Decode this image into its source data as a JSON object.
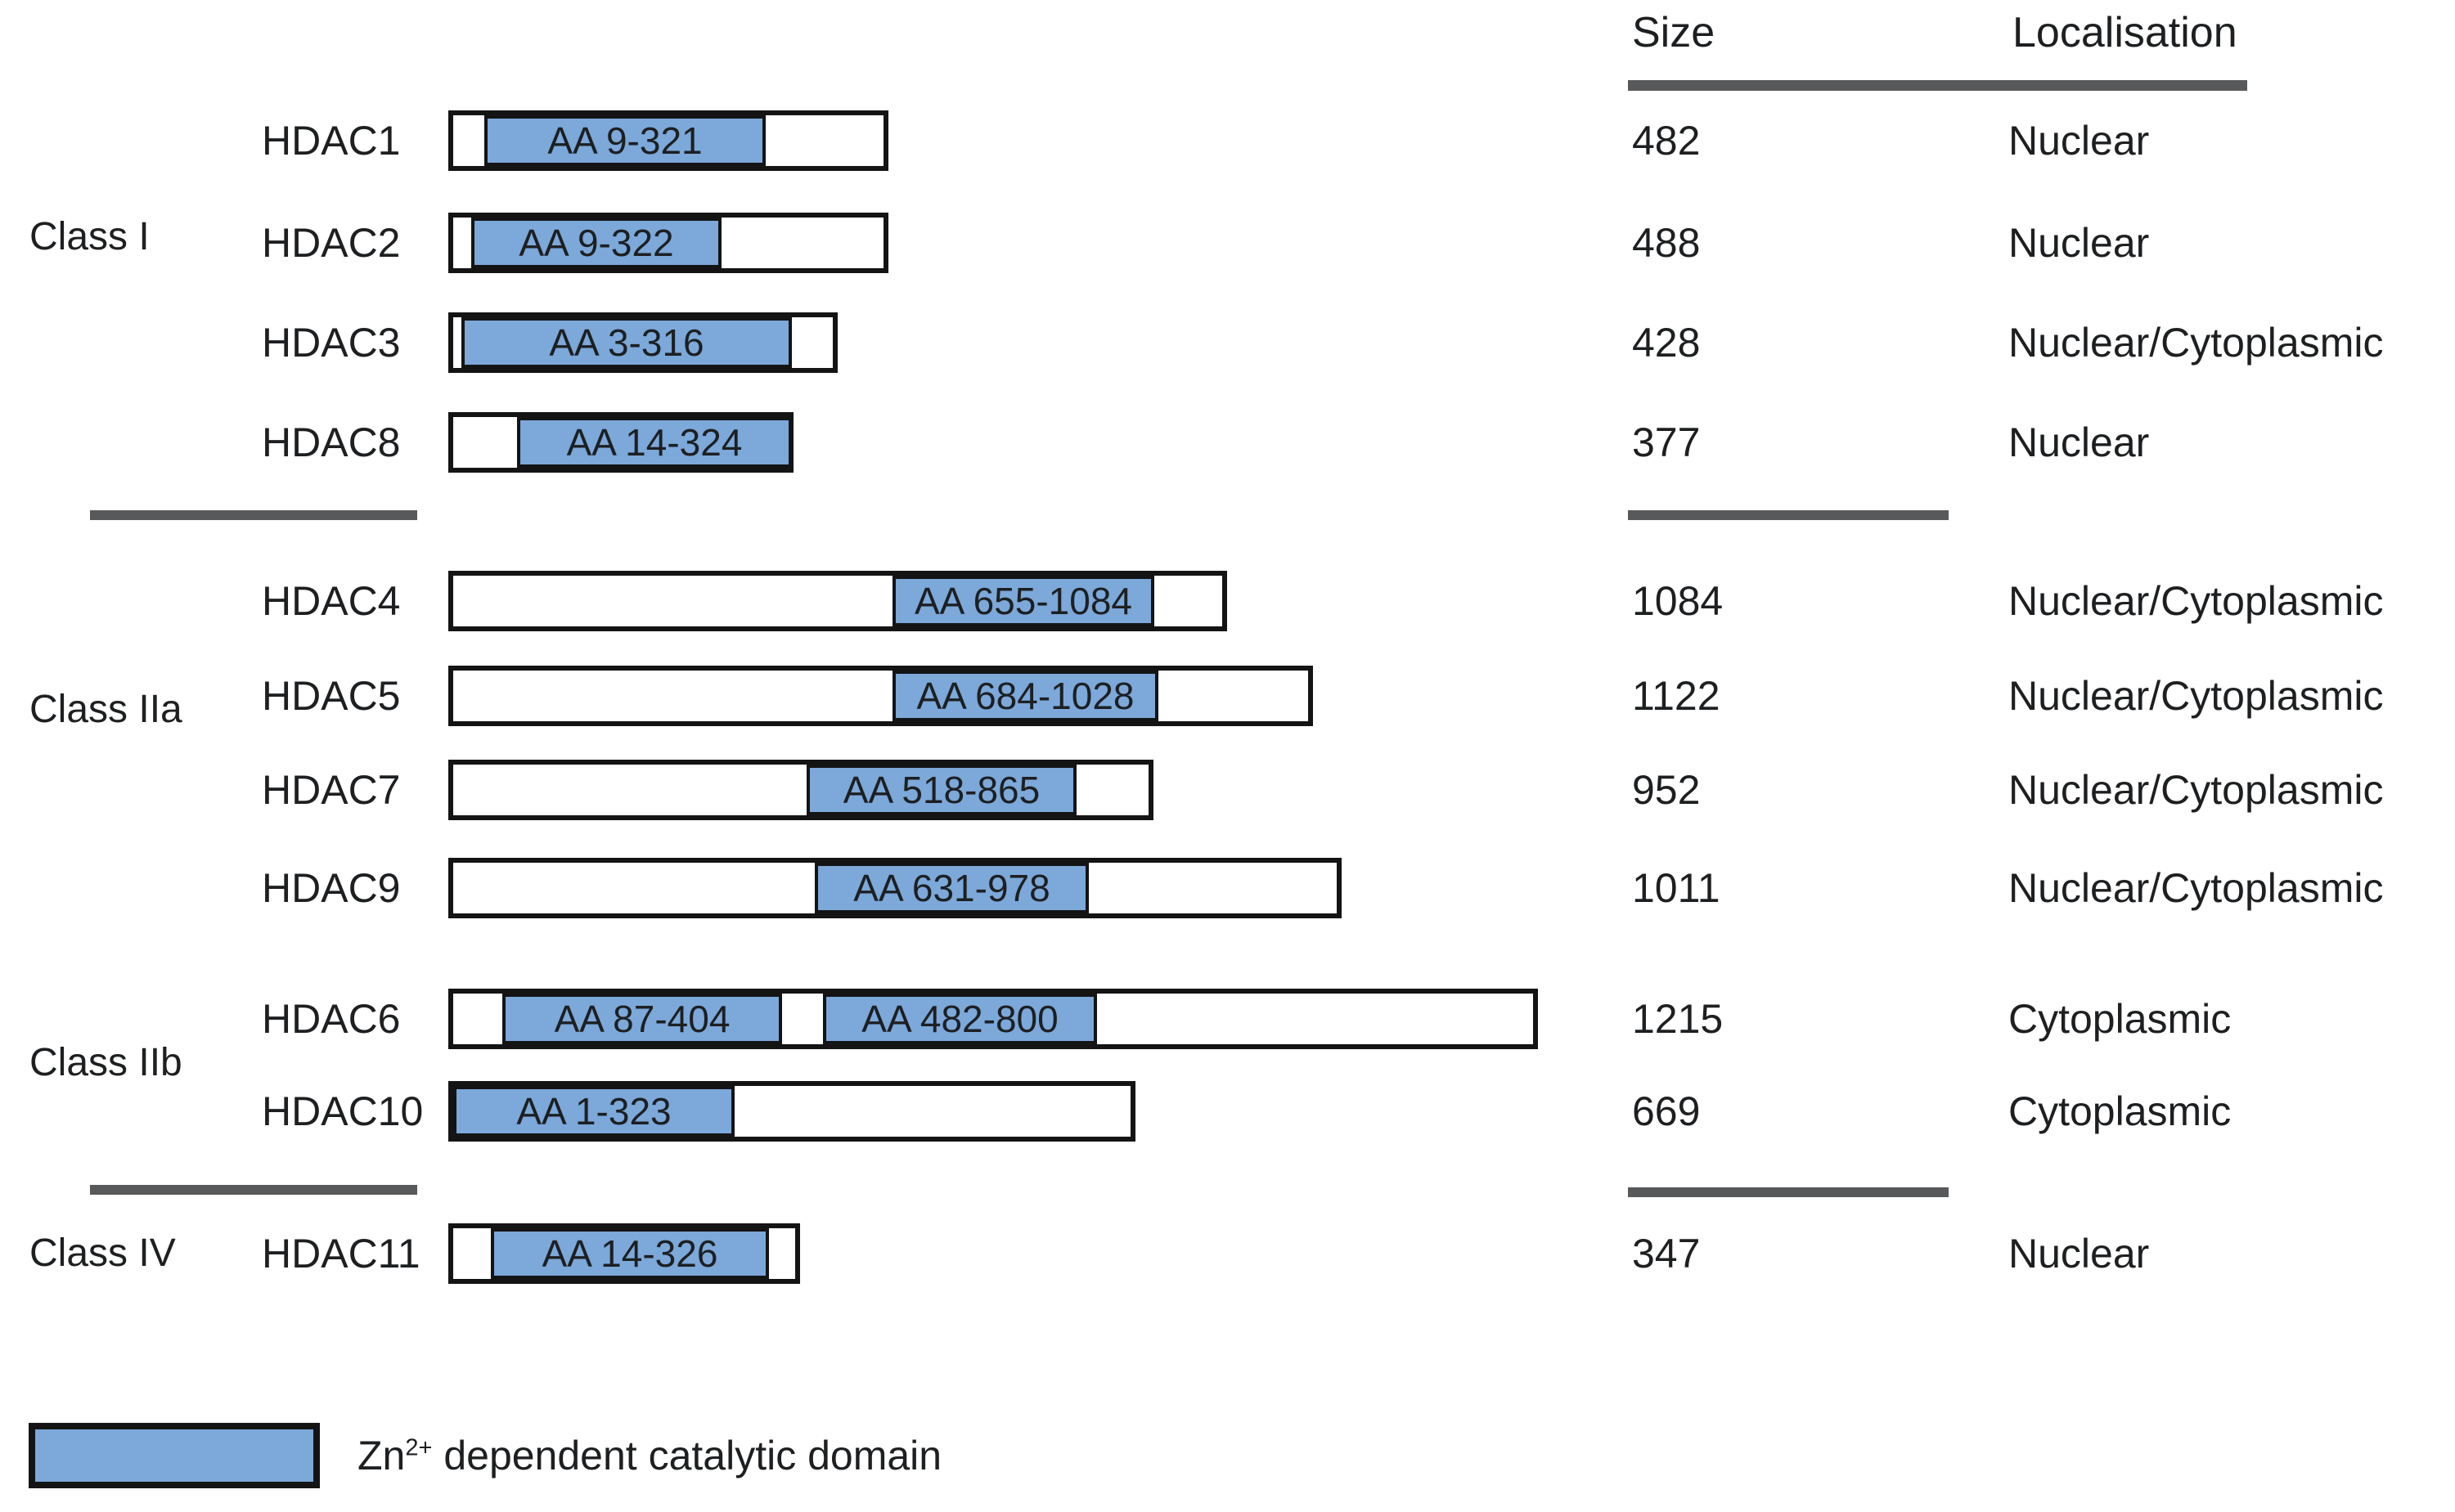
{
  "columns": {
    "size_header": "Size",
    "localisation_header": "Localisation"
  },
  "classes": [
    {
      "label": "Class I",
      "proteins": [
        {
          "name": "HDAC1",
          "size": "482",
          "localisation": "Nuclear",
          "domains": [
            {
              "label": "AA 9-321"
            }
          ]
        },
        {
          "name": "HDAC2",
          "size": "488",
          "localisation": "Nuclear",
          "domains": [
            {
              "label": "AA 9-322"
            }
          ]
        },
        {
          "name": "HDAC3",
          "size": "428",
          "localisation": "Nuclear/Cytoplasmic",
          "domains": [
            {
              "label": "AA 3-316"
            }
          ]
        },
        {
          "name": "HDAC8",
          "size": "377",
          "localisation": "Nuclear",
          "domains": [
            {
              "label": "AA 14-324"
            }
          ]
        }
      ]
    },
    {
      "label": "Class IIa",
      "proteins": [
        {
          "name": "HDAC4",
          "size": "1084",
          "localisation": "Nuclear/Cytoplasmic",
          "domains": [
            {
              "label": "AA 655-1084"
            }
          ]
        },
        {
          "name": "HDAC5",
          "size": "1122",
          "localisation": "Nuclear/Cytoplasmic",
          "domains": [
            {
              "label": "AA 684-1028"
            }
          ]
        },
        {
          "name": "HDAC7",
          "size": "952",
          "localisation": "Nuclear/Cytoplasmic",
          "domains": [
            {
              "label": "AA 518-865"
            }
          ]
        },
        {
          "name": "HDAC9",
          "size": "1011",
          "localisation": "Nuclear/Cytoplasmic",
          "domains": [
            {
              "label": "AA 631-978"
            }
          ]
        }
      ]
    },
    {
      "label": "Class IIb",
      "proteins": [
        {
          "name": "HDAC6",
          "size": "1215",
          "localisation": "Cytoplasmic",
          "domains": [
            {
              "label": "AA 87-404"
            },
            {
              "label": "AA 482-800"
            }
          ]
        },
        {
          "name": "HDAC10",
          "size": "669",
          "localisation": "Cytoplasmic",
          "domains": [
            {
              "label": "AA 1-323"
            }
          ]
        }
      ]
    },
    {
      "label": "Class IV",
      "proteins": [
        {
          "name": "HDAC11",
          "size": "347",
          "localisation": "Nuclear",
          "domains": [
            {
              "label": "AA 14-326"
            }
          ]
        }
      ]
    }
  ],
  "legend": {
    "element": "Zn",
    "superscript": "2+",
    "description": " dependent catalytic domain",
    "swatch_meaning": "Zn2+ dependent catalytic domain"
  },
  "colors": {
    "domain_fill": "#7CA8DA",
    "bar_outline": "#141414",
    "separator_line": "#58595B",
    "text": "#1D1F21",
    "background": "#FFFFFF"
  }
}
